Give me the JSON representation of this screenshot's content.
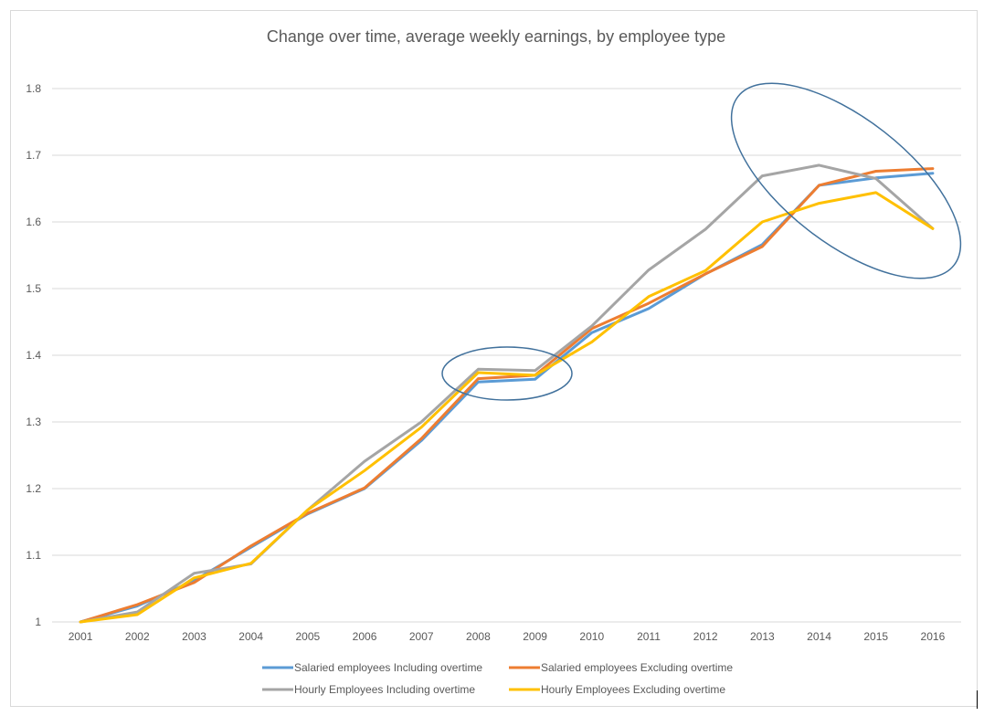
{
  "chart_data": {
    "type": "line",
    "title": "Change over time, average weekly earnings, by employee type",
    "xlabel": "",
    "ylabel": "",
    "categories": [
      "2001",
      "2002",
      "2003",
      "2004",
      "2005",
      "2006",
      "2007",
      "2008",
      "2009",
      "2010",
      "2011",
      "2012",
      "2013",
      "2014",
      "2015",
      "2016"
    ],
    "ylim": [
      1,
      1.8
    ],
    "yticks": [
      "1",
      "1.1",
      "1.2",
      "1.3",
      "1.4",
      "1.5",
      "1.6",
      "1.7",
      "1.8"
    ],
    "grid": true,
    "legend_position": "bottom",
    "series": [
      {
        "name": "Salaried employees Including overtime",
        "color": "#5B9BD5",
        "values": [
          1.0,
          1.024,
          1.062,
          1.112,
          1.162,
          1.2,
          1.272,
          1.36,
          1.364,
          1.434,
          1.47,
          1.522,
          1.566,
          1.655,
          1.666,
          1.673
        ]
      },
      {
        "name": "Salaried employees Excluding overtime",
        "color": "#ED7D31",
        "values": [
          1.0,
          1.026,
          1.059,
          1.114,
          1.163,
          1.201,
          1.275,
          1.365,
          1.37,
          1.44,
          1.478,
          1.522,
          1.563,
          1.655,
          1.676,
          1.68
        ]
      },
      {
        "name": "Hourly Employees Including overtime",
        "color": "#A5A5A5",
        "values": [
          1.0,
          1.015,
          1.073,
          1.087,
          1.168,
          1.241,
          1.3,
          1.379,
          1.377,
          1.444,
          1.528,
          1.589,
          1.669,
          1.685,
          1.665,
          1.59
        ]
      },
      {
        "name": "Hourly Employees Excluding overtime",
        "color": "#FFC000",
        "values": [
          1.0,
          1.011,
          1.066,
          1.088,
          1.168,
          1.227,
          1.292,
          1.374,
          1.37,
          1.42,
          1.488,
          1.527,
          1.6,
          1.628,
          1.644,
          1.59
        ]
      }
    ],
    "annotations": [
      {
        "shape": "ellipse",
        "color": "#41719C",
        "x_range": [
          "2007",
          "2010"
        ],
        "y_center": 1.37
      },
      {
        "shape": "ellipse",
        "color": "#41719C",
        "x_range": [
          "2013",
          "2016"
        ],
        "y_center": 1.66
      }
    ]
  }
}
